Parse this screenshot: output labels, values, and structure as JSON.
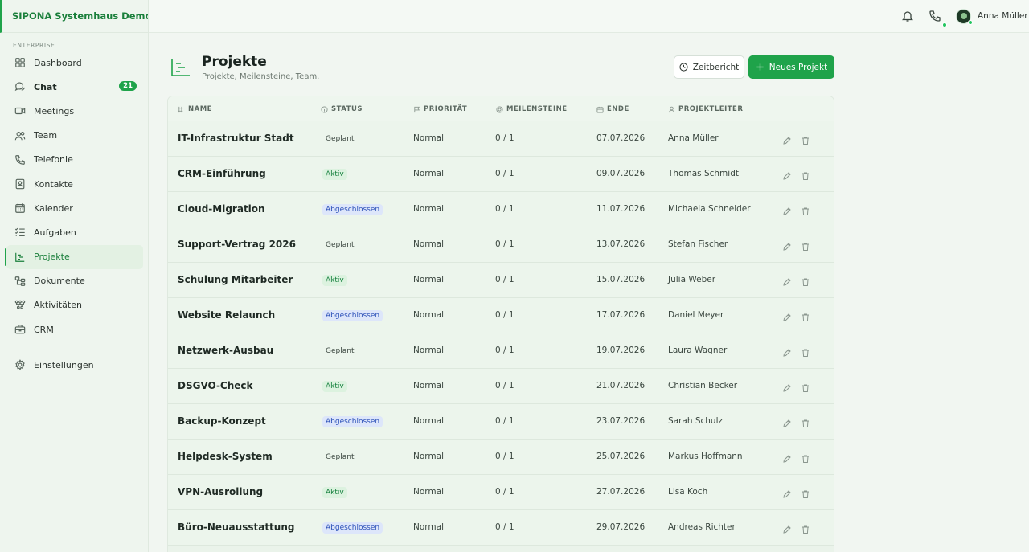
{
  "app": {
    "brand": "SIPONA Systemhaus Demo...",
    "section": "ENTERPRISE"
  },
  "sidebar": {
    "items": [
      {
        "label": "Dashboard",
        "icon": "grid-icon"
      },
      {
        "label": "Chat",
        "icon": "chat-icon",
        "badge": "21"
      },
      {
        "label": "Meetings",
        "icon": "video-icon"
      },
      {
        "label": "Team",
        "icon": "users-icon"
      },
      {
        "label": "Telefonie",
        "icon": "phone-icon"
      },
      {
        "label": "Kontakte",
        "icon": "contact-card-icon"
      },
      {
        "label": "Kalender",
        "icon": "calendar-icon"
      },
      {
        "label": "Aufgaben",
        "icon": "checklist-icon"
      },
      {
        "label": "Projekte",
        "icon": "gantt-icon"
      },
      {
        "label": "Dokumente",
        "icon": "folder-tree-icon"
      },
      {
        "label": "Aktivitäten",
        "icon": "activity-icon"
      },
      {
        "label": "CRM",
        "icon": "briefcase-icon"
      }
    ],
    "settings": {
      "label": "Einstellungen",
      "icon": "gear-icon"
    }
  },
  "topbar": {
    "user_name": "Anna Müller"
  },
  "page": {
    "title": "Projekte",
    "subtitle": "Projekte, Meilensteine, Team.",
    "btn_report": "Zeitbericht",
    "btn_new": "Neues Projekt"
  },
  "table": {
    "headers": {
      "name": "NAME",
      "status": "STATUS",
      "priority": "PRIORITÄT",
      "milestones": "MEILENSTEINE",
      "end": "ENDE",
      "lead": "PROJEKTLEITER"
    },
    "rows": [
      {
        "name": "IT-Infrastruktur Stadt",
        "status": "Geplant",
        "priority": "Normal",
        "milestones": "0 / 1",
        "end": "07.07.2026",
        "lead": "Anna Müller"
      },
      {
        "name": "CRM-Einführung",
        "status": "Aktiv",
        "priority": "Normal",
        "milestones": "0 / 1",
        "end": "09.07.2026",
        "lead": "Thomas Schmidt"
      },
      {
        "name": "Cloud-Migration",
        "status": "Abgeschlossen",
        "priority": "Normal",
        "milestones": "0 / 1",
        "end": "11.07.2026",
        "lead": "Michaela Schneider"
      },
      {
        "name": "Support-Vertrag 2026",
        "status": "Geplant",
        "priority": "Normal",
        "milestones": "0 / 1",
        "end": "13.07.2026",
        "lead": "Stefan Fischer"
      },
      {
        "name": "Schulung Mitarbeiter",
        "status": "Aktiv",
        "priority": "Normal",
        "milestones": "0 / 1",
        "end": "15.07.2026",
        "lead": "Julia Weber"
      },
      {
        "name": "Website Relaunch",
        "status": "Abgeschlossen",
        "priority": "Normal",
        "milestones": "0 / 1",
        "end": "17.07.2026",
        "lead": "Daniel Meyer"
      },
      {
        "name": "Netzwerk-Ausbau",
        "status": "Geplant",
        "priority": "Normal",
        "milestones": "0 / 1",
        "end": "19.07.2026",
        "lead": "Laura Wagner"
      },
      {
        "name": "DSGVO-Check",
        "status": "Aktiv",
        "priority": "Normal",
        "milestones": "0 / 1",
        "end": "21.07.2026",
        "lead": "Christian Becker"
      },
      {
        "name": "Backup-Konzept",
        "status": "Abgeschlossen",
        "priority": "Normal",
        "milestones": "0 / 1",
        "end": "23.07.2026",
        "lead": "Sarah Schulz"
      },
      {
        "name": "Helpdesk-System",
        "status": "Geplant",
        "priority": "Normal",
        "milestones": "0 / 1",
        "end": "25.07.2026",
        "lead": "Markus Hoffmann"
      },
      {
        "name": "VPN-Ausrollung",
        "status": "Aktiv",
        "priority": "Normal",
        "milestones": "0 / 1",
        "end": "27.07.2026",
        "lead": "Lisa Koch"
      },
      {
        "name": "Büro-Neuausstattung",
        "status": "Abgeschlossen",
        "priority": "Normal",
        "milestones": "0 / 1",
        "end": "29.07.2026",
        "lead": "Andreas Richter"
      }
    ]
  },
  "colors": {
    "accent": "#1fa34a",
    "sidebar_bg": "#eef5ee",
    "status_active": "#15803d",
    "status_done": "#2a4fb8"
  }
}
